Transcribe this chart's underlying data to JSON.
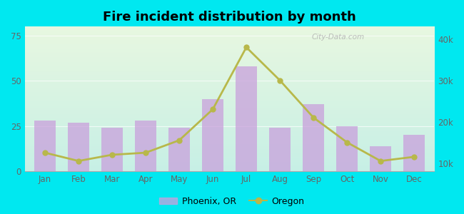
{
  "title": "Fire incident distribution by month",
  "months": [
    "Jan",
    "Feb",
    "Mar",
    "Apr",
    "May",
    "Jun",
    "Jul",
    "Aug",
    "Sep",
    "Oct",
    "Nov",
    "Dec"
  ],
  "phoenix_values": [
    28,
    27,
    24,
    28,
    24,
    40,
    58,
    24,
    37,
    25,
    14,
    20
  ],
  "oregon_values": [
    12500,
    10500,
    12000,
    12500,
    15500,
    23000,
    38000,
    30000,
    21000,
    15000,
    10500,
    11500
  ],
  "bar_color": "#c9a0dc",
  "line_color": "#b8b84a",
  "line_marker": "o",
  "bar_alpha": 0.75,
  "left_ylim": [
    0,
    80
  ],
  "left_yticks": [
    0,
    25,
    50,
    75
  ],
  "right_ylim": [
    8000,
    43000
  ],
  "right_yticks": [
    10000,
    20000,
    30000,
    40000
  ],
  "right_yticklabels": [
    "10k",
    "20k",
    "30k",
    "40k"
  ],
  "background_outer": "#00e8f0",
  "watermark": "City-Data.com"
}
